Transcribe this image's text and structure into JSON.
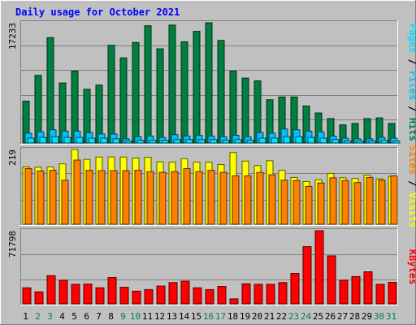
{
  "chart_data": [
    {
      "type": "bar",
      "title": "Daily usage for October 2021",
      "panel": "hits-files-pages",
      "ylabel_parts": [
        "Pages",
        "Files",
        "Hits"
      ],
      "ymax_label": "17233",
      "categories": [
        "1",
        "2",
        "3",
        "4",
        "5",
        "6",
        "7",
        "8",
        "9",
        "10",
        "11",
        "12",
        "13",
        "14",
        "15",
        "16",
        "17",
        "18",
        "19",
        "20",
        "21",
        "22",
        "23",
        "24",
        "25",
        "26",
        "27",
        "28",
        "29",
        "30",
        "31"
      ],
      "weekend_days": [
        "2",
        "3",
        "9",
        "10",
        "16",
        "17",
        "23",
        "24",
        "30",
        "31"
      ],
      "series": [
        {
          "name": "Hits",
          "color": "#008040",
          "values": [
            6000,
            9700,
            15100,
            8600,
            10300,
            7700,
            8300,
            14000,
            12200,
            14400,
            16800,
            13500,
            16900,
            14500,
            16000,
            17233,
            14700,
            10300,
            9300,
            8900,
            6200,
            6600,
            6600,
            5300,
            4300,
            3500,
            2600,
            2800,
            3500,
            3600,
            2800
          ]
        },
        {
          "name": "Files",
          "color": "#00C0FF",
          "values": [
            1400,
            1600,
            1900,
            1700,
            1700,
            1500,
            1300,
            1300,
            600,
            900,
            1000,
            800,
            1200,
            1000,
            1100,
            1000,
            900,
            1100,
            900,
            1500,
            1400,
            2000,
            1900,
            1700,
            1600,
            1000,
            700,
            600,
            600,
            800,
            700
          ]
        },
        {
          "name": "Pages",
          "color": "#00E0FF",
          "values": [
            700,
            800,
            900,
            800,
            800,
            700,
            700,
            600,
            300,
            400,
            400,
            400,
            500,
            500,
            500,
            500,
            400,
            500,
            400,
            700,
            700,
            900,
            900,
            800,
            700,
            500,
            300,
            300,
            300,
            400,
            300
          ]
        }
      ]
    },
    {
      "type": "bar",
      "panel": "visits-sites",
      "ylabel_parts": [
        "Sites",
        "Visits"
      ],
      "ymax_label": "219",
      "categories": [
        "1",
        "2",
        "3",
        "4",
        "5",
        "6",
        "7",
        "8",
        "9",
        "10",
        "11",
        "12",
        "13",
        "14",
        "15",
        "16",
        "17",
        "18",
        "19",
        "20",
        "21",
        "22",
        "23",
        "24",
        "25",
        "26",
        "27",
        "28",
        "29",
        "30",
        "31"
      ],
      "series": [
        {
          "name": "Visits",
          "color": "#FFFF00",
          "values": [
            168,
            167,
            168,
            177,
            219,
            190,
            197,
            197,
            197,
            194,
            196,
            183,
            182,
            192,
            182,
            182,
            175,
            210,
            185,
            172,
            186,
            158,
            137,
            125,
            130,
            149,
            136,
            134,
            144,
            133,
            140
          ]
        },
        {
          "name": "Sites",
          "color": "#FF8000",
          "values": [
            163,
            156,
            158,
            129,
            188,
            158,
            157,
            157,
            157,
            158,
            154,
            152,
            154,
            163,
            154,
            158,
            152,
            142,
            142,
            152,
            145,
            129,
            128,
            111,
            121,
            136,
            128,
            122,
            137,
            129,
            142
          ]
        }
      ]
    },
    {
      "type": "bar",
      "panel": "kbytes",
      "ylabel_parts": [
        "KBytes"
      ],
      "ymax_label": "71798",
      "categories": [
        "1",
        "2",
        "3",
        "4",
        "5",
        "6",
        "7",
        "8",
        "9",
        "10",
        "11",
        "12",
        "13",
        "14",
        "15",
        "16",
        "17",
        "18",
        "19",
        "20",
        "21",
        "22",
        "23",
        "24",
        "25",
        "26",
        "27",
        "28",
        "29",
        "30",
        "31"
      ],
      "series": [
        {
          "name": "KBytes",
          "color": "#FF0000",
          "values": [
            15800,
            11800,
            27700,
            23100,
            19200,
            19400,
            15800,
            25900,
            16300,
            12500,
            14000,
            17500,
            20900,
            22300,
            15800,
            14000,
            17100,
            4900,
            19700,
            19200,
            19200,
            20900,
            29900,
            56200,
            71798,
            47100,
            23100,
            26800,
            31500,
            19200,
            21100
          ]
        }
      ]
    }
  ]
}
